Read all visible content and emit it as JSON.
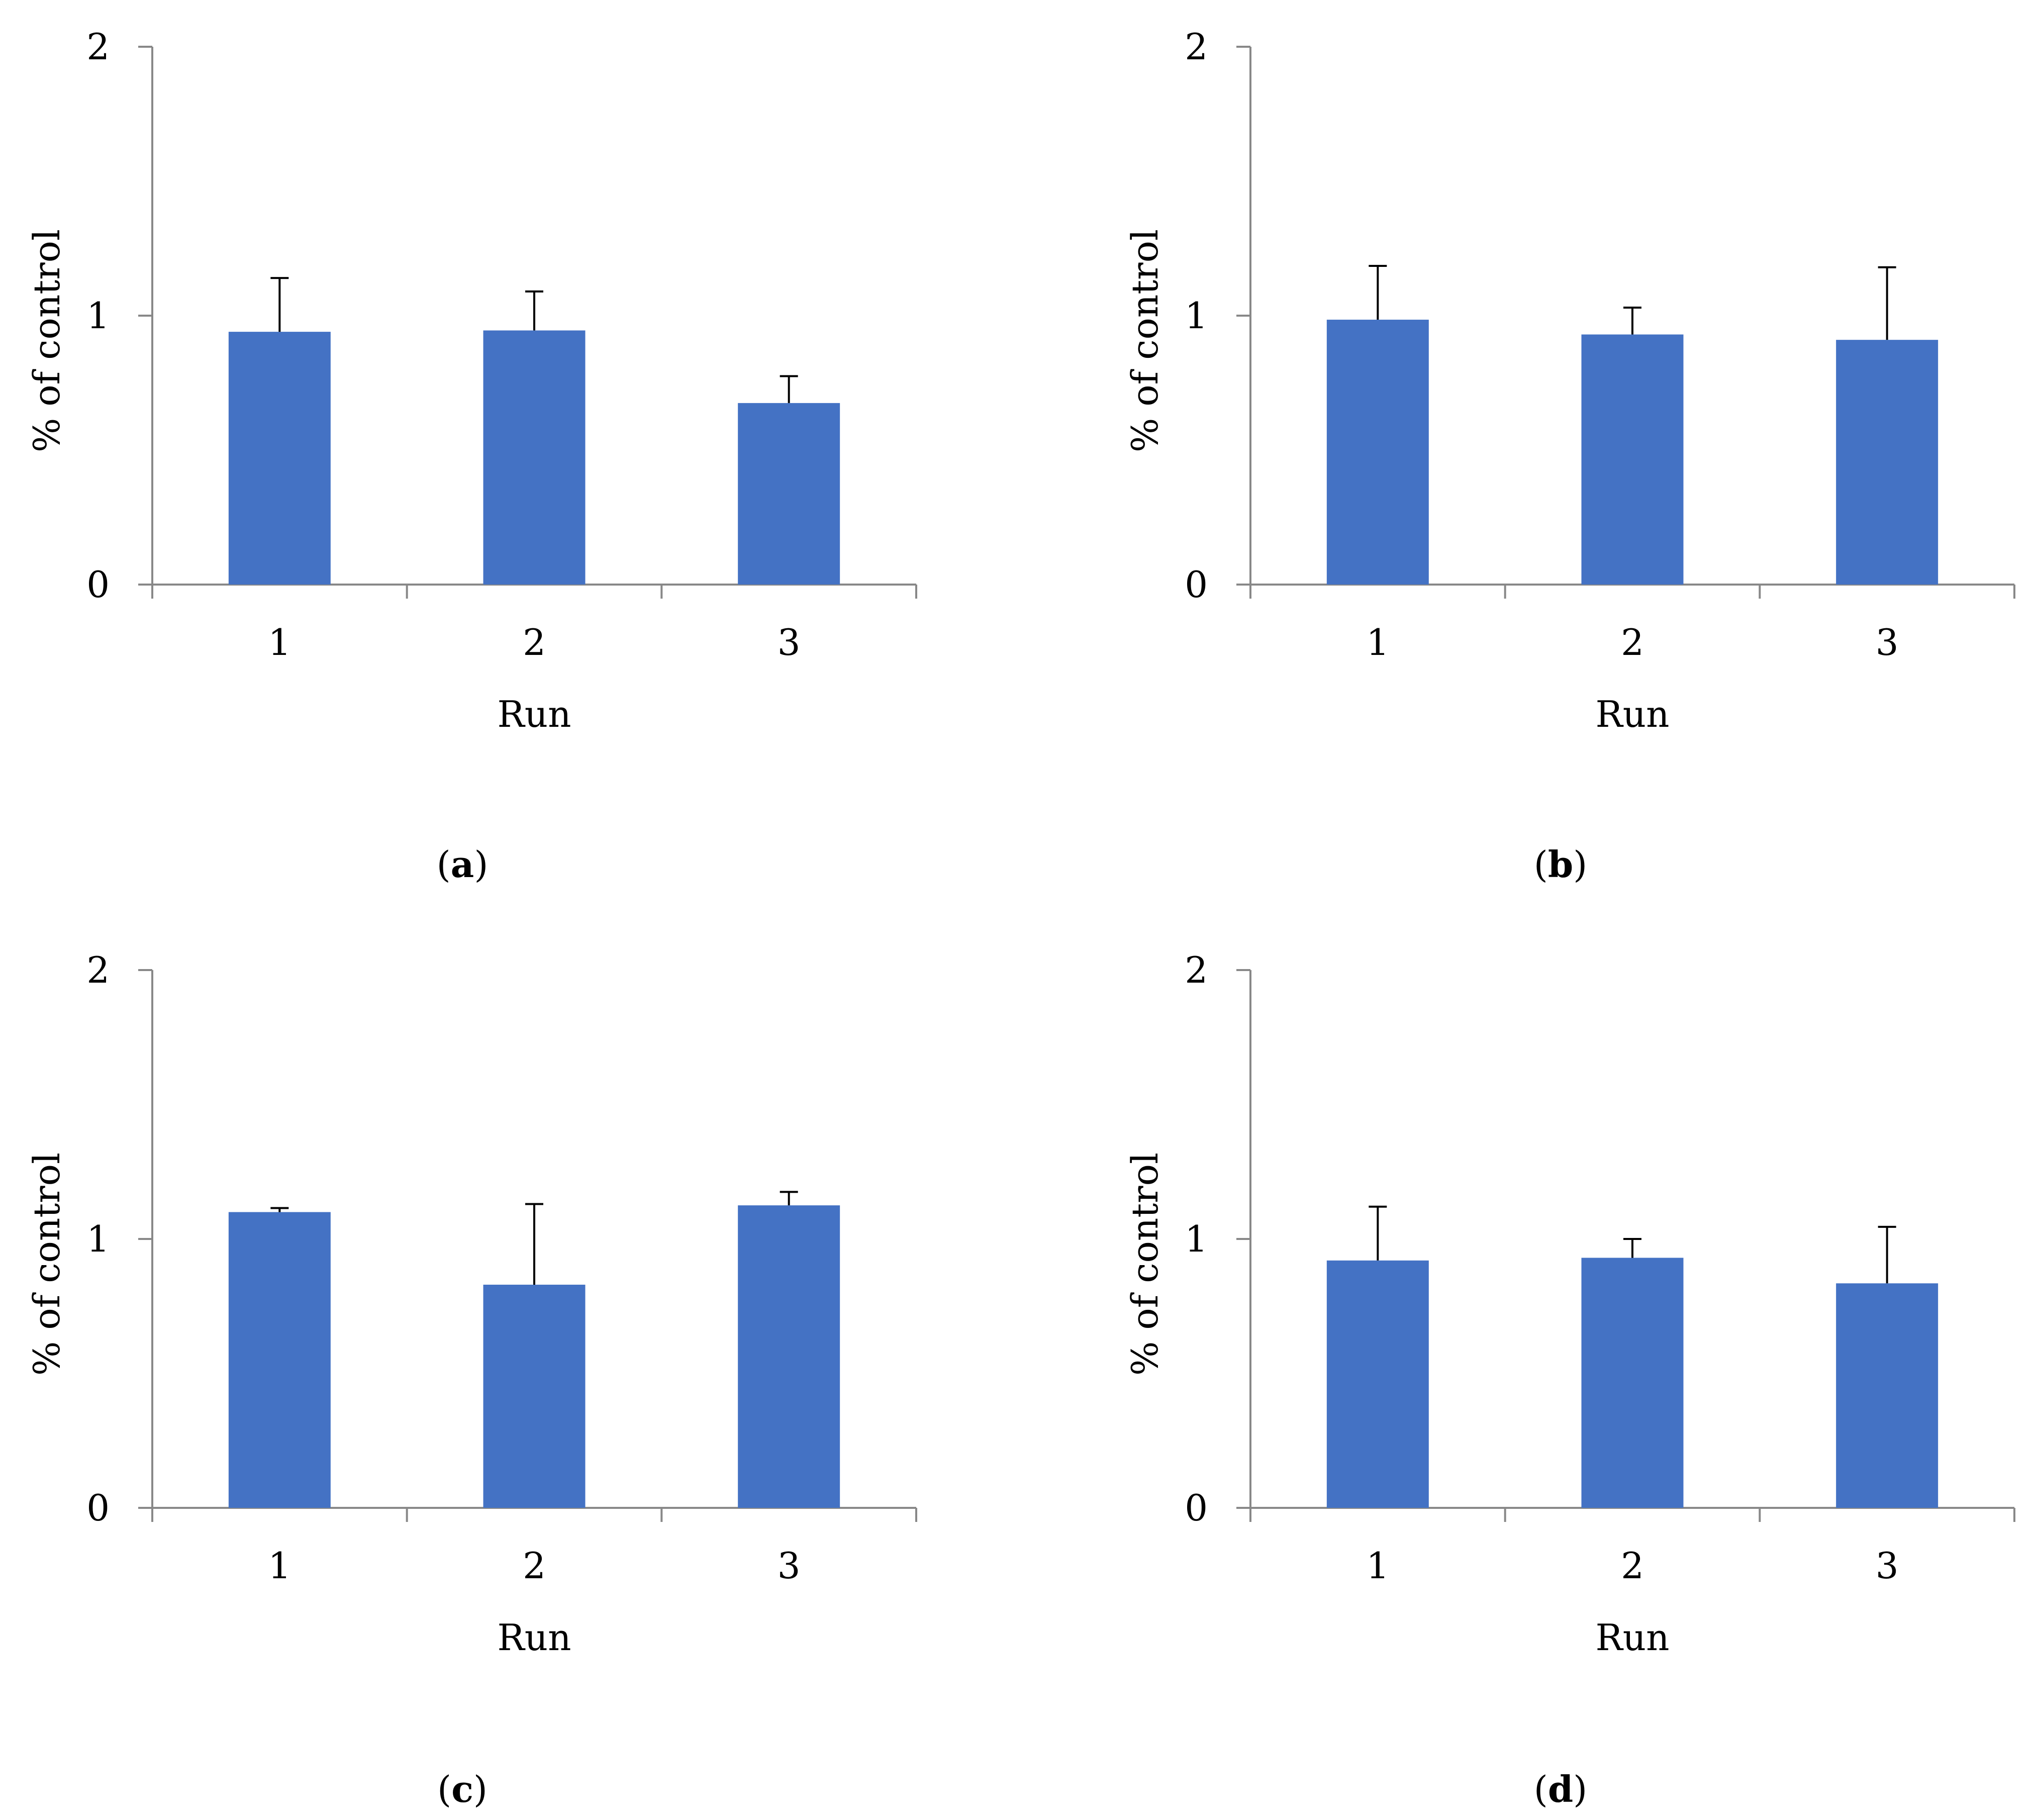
{
  "chart_data": [
    {
      "type": "bar",
      "panel_label": "a",
      "categories": [
        "1",
        "2",
        "3"
      ],
      "values": [
        0.94,
        0.945,
        0.675
      ],
      "error_upper": [
        0.2,
        0.145,
        0.1
      ],
      "xlabel": "Run",
      "ylabel": "% of control",
      "ylim": [
        0,
        2
      ],
      "yticks": [
        "0",
        "1",
        "2"
      ],
      "grid": false
    },
    {
      "type": "bar",
      "panel_label": "b",
      "categories": [
        "1",
        "2",
        "3"
      ],
      "values": [
        0.985,
        0.93,
        0.91
      ],
      "error_upper": [
        0.2,
        0.1,
        0.27
      ],
      "xlabel": "Run",
      "ylabel": "% of control",
      "ylim": [
        0,
        2
      ],
      "yticks": [
        "0",
        "1",
        "2"
      ],
      "grid": false
    },
    {
      "type": "bar",
      "panel_label": "c",
      "categories": [
        "1",
        "2",
        "3"
      ],
      "values": [
        1.1,
        0.83,
        1.125
      ],
      "error_upper": [
        0.015,
        0.3,
        0.05
      ],
      "xlabel": "Run",
      "ylabel": "% of control",
      "ylim": [
        0,
        2
      ],
      "yticks": [
        "0",
        "1",
        "2"
      ],
      "grid": false
    },
    {
      "type": "bar",
      "panel_label": "d",
      "categories": [
        "1",
        "2",
        "3"
      ],
      "values": [
        0.92,
        0.93,
        0.835
      ],
      "error_upper": [
        0.2,
        0.07,
        0.21
      ],
      "xlabel": "Run",
      "ylabel": "% of control",
      "ylim": [
        0,
        2
      ],
      "yticks": [
        "0",
        "1",
        "2"
      ],
      "grid": false
    }
  ],
  "colors": {
    "bar": "#4472C4",
    "axis": "#888888",
    "error": "#000000"
  }
}
